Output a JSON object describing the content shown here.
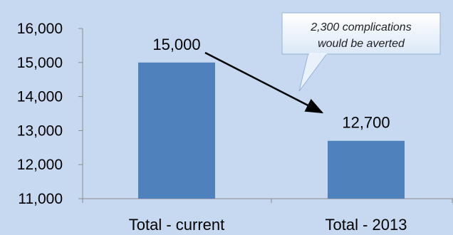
{
  "chart_data": {
    "type": "bar",
    "categories": [
      "Total - current",
      "Total - 2013"
    ],
    "values": [
      15000,
      12700
    ],
    "data_labels": [
      "15,000",
      "12,700"
    ],
    "ylim": [
      11000,
      16000
    ],
    "yticks": [
      11000,
      12000,
      13000,
      14000,
      15000,
      16000
    ],
    "ytick_labels": [
      "11,000",
      "12,000",
      "13,000",
      "14,000",
      "15,000",
      "16,000"
    ],
    "title": "",
    "xlabel": "",
    "ylabel": "",
    "grid": false,
    "annotation": {
      "lines": [
        "2,300 complications",
        "would be averted"
      ],
      "arrow_from": "Total - current",
      "arrow_to": "Total - 2013"
    }
  },
  "colors": {
    "background": "#c6d9f1",
    "bar": "#4f81bd",
    "axis": "#8c8c8c",
    "arrow": "#000000",
    "callout_fill": "#f2f7fd",
    "callout_border": "#95b3d7"
  }
}
